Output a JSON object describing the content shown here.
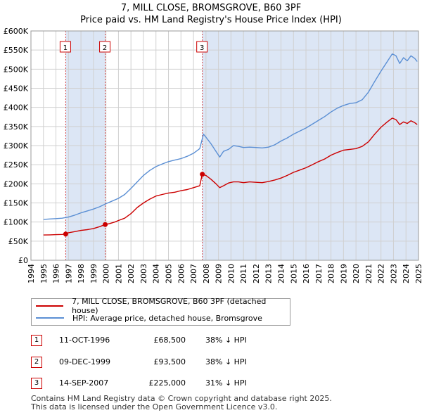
{
  "chart_data": {
    "type": "line",
    "title": "7, MILL CLOSE, BROMSGROVE, B60 3PF",
    "subtitle": "Price paid vs. HM Land Registry's House Price Index (HPI)",
    "xlim": [
      1994,
      2025
    ],
    "ylim": [
      0,
      600000
    ],
    "x_ticks": [
      "1994",
      "1995",
      "1996",
      "1997",
      "1998",
      "1999",
      "2000",
      "2001",
      "2002",
      "2003",
      "2004",
      "2005",
      "2006",
      "2007",
      "2008",
      "2009",
      "2010",
      "2011",
      "2012",
      "2013",
      "2014",
      "2015",
      "2016",
      "2017",
      "2018",
      "2019",
      "2020",
      "2021",
      "2022",
      "2023",
      "2024",
      "2025"
    ],
    "y_ticks": [
      {
        "value": 0,
        "label": "£0"
      },
      {
        "value": 50000,
        "label": "£50K"
      },
      {
        "value": 100000,
        "label": "£100K"
      },
      {
        "value": 150000,
        "label": "£150K"
      },
      {
        "value": 200000,
        "label": "£200K"
      },
      {
        "value": 250000,
        "label": "£250K"
      },
      {
        "value": 300000,
        "label": "£300K"
      },
      {
        "value": 350000,
        "label": "£350K"
      },
      {
        "value": 400000,
        "label": "£400K"
      },
      {
        "value": 450000,
        "label": "£450K"
      },
      {
        "value": 500000,
        "label": "£500K"
      },
      {
        "value": 550000,
        "label": "£550K"
      },
      {
        "value": 600000,
        "label": "£600K"
      }
    ],
    "colors": {
      "property": "#cc0000",
      "hpi": "#5b8fd4",
      "shade": "#dce6f5",
      "grid": "#d0d0d0"
    },
    "series": [
      {
        "name": "7, MILL CLOSE, BROMSGROVE, B60 3PF (detached house)",
        "color": "#cc0000",
        "x": [
          1995.0,
          1995.5,
          1996.0,
          1996.5,
          1996.78,
          1997.0,
          1997.5,
          1998.0,
          1998.5,
          1999.0,
          1999.5,
          1999.94,
          2000.3,
          2000.7,
          2001.0,
          2001.5,
          2002.0,
          2002.5,
          2003.0,
          2003.5,
          2004.0,
          2004.5,
          2005.0,
          2005.5,
          2006.0,
          2006.5,
          2007.0,
          2007.5,
          2007.7,
          2008.0,
          2008.4,
          2008.8,
          2009.1,
          2009.4,
          2009.8,
          2010.2,
          2010.6,
          2011.0,
          2011.5,
          2012.0,
          2012.5,
          2013.0,
          2013.5,
          2014.0,
          2014.5,
          2015.0,
          2015.5,
          2016.0,
          2016.5,
          2017.0,
          2017.5,
          2018.0,
          2018.5,
          2019.0,
          2019.5,
          2020.0,
          2020.5,
          2021.0,
          2021.5,
          2022.0,
          2022.5,
          2022.9,
          2023.2,
          2023.5,
          2023.8,
          2024.1,
          2024.4,
          2024.7,
          2024.9
        ],
        "values": [
          66000,
          66500,
          67000,
          67500,
          68500,
          72000,
          75000,
          78000,
          80000,
          83000,
          88000,
          93500,
          96000,
          100000,
          104000,
          110000,
          122000,
          138000,
          150000,
          160000,
          168000,
          172000,
          176000,
          178000,
          182000,
          185000,
          190000,
          195000,
          225000,
          222000,
          212000,
          200000,
          190000,
          195000,
          202000,
          205000,
          205000,
          203000,
          205000,
          204000,
          203000,
          206000,
          210000,
          215000,
          222000,
          230000,
          236000,
          242000,
          250000,
          258000,
          265000,
          275000,
          282000,
          288000,
          290000,
          292000,
          298000,
          310000,
          330000,
          348000,
          362000,
          372000,
          368000,
          355000,
          362000,
          358000,
          365000,
          360000,
          355000
        ]
      },
      {
        "name": "HPI: Average price, detached house, Bromsgrove",
        "color": "#5b8fd4",
        "x": [
          1995.0,
          1995.5,
          1996.0,
          1996.5,
          1997.0,
          1997.5,
          1998.0,
          1998.5,
          1999.0,
          1999.5,
          2000.0,
          2000.5,
          2001.0,
          2001.5,
          2002.0,
          2002.5,
          2003.0,
          2003.5,
          2004.0,
          2004.5,
          2005.0,
          2005.5,
          2006.0,
          2006.5,
          2007.0,
          2007.5,
          2007.8,
          2008.0,
          2008.4,
          2008.8,
          2009.1,
          2009.4,
          2009.8,
          2010.2,
          2010.6,
          2011.0,
          2011.5,
          2012.0,
          2012.5,
          2013.0,
          2013.5,
          2014.0,
          2014.5,
          2015.0,
          2015.5,
          2016.0,
          2016.5,
          2017.0,
          2017.5,
          2018.0,
          2018.5,
          2019.0,
          2019.5,
          2020.0,
          2020.5,
          2021.0,
          2021.5,
          2022.0,
          2022.5,
          2022.9,
          2023.2,
          2023.5,
          2023.8,
          2024.1,
          2024.4,
          2024.7,
          2024.9
        ],
        "values": [
          107000,
          108000,
          109000,
          110000,
          113000,
          118000,
          124000,
          129000,
          134000,
          140000,
          148000,
          155000,
          162000,
          172000,
          188000,
          205000,
          222000,
          235000,
          245000,
          252000,
          258000,
          262000,
          266000,
          272000,
          280000,
          292000,
          330000,
          322000,
          305000,
          285000,
          270000,
          285000,
          290000,
          300000,
          298000,
          295000,
          296000,
          295000,
          294000,
          296000,
          302000,
          312000,
          320000,
          330000,
          338000,
          346000,
          356000,
          366000,
          376000,
          388000,
          398000,
          405000,
          410000,
          412000,
          420000,
          440000,
          468000,
          495000,
          520000,
          540000,
          535000,
          515000,
          530000,
          522000,
          535000,
          528000,
          520000
        ]
      }
    ],
    "transactions": [
      {
        "num": "1",
        "x": 1996.78,
        "price_value": 68500,
        "date": "11-OCT-1996",
        "price": "£68,500",
        "hpi": "38% ↓ HPI"
      },
      {
        "num": "2",
        "x": 1999.94,
        "price_value": 93500,
        "date": "09-DEC-1999",
        "price": "£93,500",
        "hpi": "38% ↓ HPI"
      },
      {
        "num": "3",
        "x": 2007.71,
        "price_value": 225000,
        "date": "14-SEP-2007",
        "price": "£225,000",
        "hpi": "31% ↓ HPI"
      }
    ]
  },
  "legend": {
    "property_label": "7, MILL CLOSE, BROMSGROVE, B60 3PF (detached house)",
    "hpi_label": "HPI: Average price, detached house, Bromsgrove"
  },
  "footer": {
    "line1": "Contains HM Land Registry data © Crown copyright and database right 2025.",
    "line2": "This data is licensed under the Open Government Licence v3.0."
  }
}
